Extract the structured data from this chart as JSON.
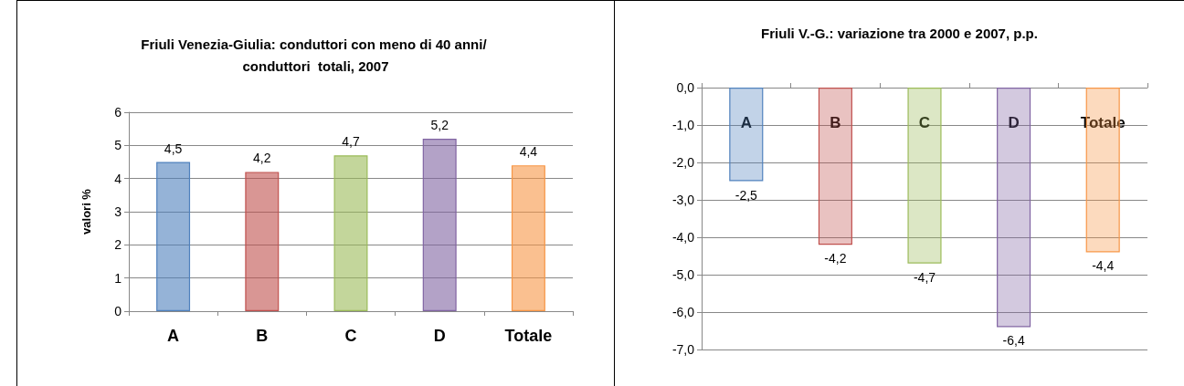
{
  "chart_data": [
    {
      "type": "bar",
      "title": "Friuli Venezia-Giulia: conduttori con meno di 40 anni/ conduttori  totali, 2007",
      "ylabel": "valori %",
      "categories": [
        "A",
        "B",
        "C",
        "D",
        "Totale"
      ],
      "values": [
        4.5,
        4.2,
        4.7,
        5.2,
        4.4
      ],
      "colors": [
        "#4f81bd",
        "#c0504d",
        "#9bbb59",
        "#8064a2",
        "#f79646"
      ],
      "value_labels": [
        "4,5",
        "4,2",
        "4,7",
        "5,2",
        "4,4"
      ],
      "ylim": [
        0,
        6
      ],
      "yticks": [
        0,
        1,
        2,
        3,
        4,
        5,
        6
      ],
      "grid": "y"
    },
    {
      "type": "bar",
      "title": "Friuli V.-G.: variazione tra 2000 e 2007, p.p.",
      "categories": [
        "A",
        "B",
        "C",
        "D",
        "Totale"
      ],
      "values": [
        -2.5,
        -4.2,
        -4.7,
        -6.4,
        -4.4
      ],
      "colors": [
        "#4f81bd",
        "#c0504d",
        "#9bbb59",
        "#8064a2",
        "#f79646"
      ],
      "value_labels": [
        "-2,5",
        "-4,2",
        "-4,7",
        "-6,4",
        "-4,4"
      ],
      "ylim": [
        -7,
        0
      ],
      "yticks": [
        {
          "value": -7,
          "label": "-7,0"
        },
        {
          "value": -6,
          "label": "-6,0"
        },
        {
          "value": -5,
          "label": "-5,0"
        },
        {
          "value": -4,
          "label": "-4,0"
        },
        {
          "value": -3,
          "label": "-3,0"
        },
        {
          "value": -2,
          "label": "-2,0"
        },
        {
          "value": -1,
          "label": "-1,0"
        },
        {
          "value": 0,
          "label": "0,0"
        }
      ],
      "grid": "y"
    }
  ]
}
